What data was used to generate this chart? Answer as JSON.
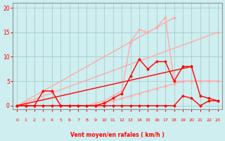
{
  "bg_color": "#ceeef0",
  "grid_color": "#aacccc",
  "line_color_dark": "#ff0000",
  "line_color_light": "#ff9999",
  "xlabel": "Vent moyen/en rafales ( km/h )",
  "ylabel_ticks": [
    0,
    5,
    10,
    15,
    20
  ],
  "x_ticks": [
    0,
    1,
    2,
    3,
    4,
    5,
    6,
    7,
    8,
    9,
    10,
    11,
    12,
    13,
    14,
    15,
    16,
    17,
    18,
    19,
    20,
    21,
    22,
    23
  ],
  "xlim": [
    -0.5,
    23.5
  ],
  "ylim": [
    -0.8,
    21
  ],
  "series": [
    {
      "x": [
        0,
        18
      ],
      "y": [
        0,
        18
      ],
      "color": "#ffaaaa",
      "lw": 1.0,
      "marker": "D",
      "ms": 1.5,
      "markevery": null
    },
    {
      "x": [
        0,
        23
      ],
      "y": [
        0,
        15
      ],
      "color": "#ffaaaa",
      "lw": 1.0,
      "marker": "D",
      "ms": 1.5,
      "markevery": null
    },
    {
      "x": [
        0,
        1,
        2,
        3,
        4,
        5,
        6,
        7,
        8,
        9,
        10,
        11,
        12,
        13,
        14,
        15,
        16,
        17,
        18,
        19,
        20,
        21,
        22,
        23
      ],
      "y": [
        0,
        0,
        0,
        3,
        3,
        0,
        0,
        0,
        0,
        0.5,
        1,
        2,
        3,
        13,
        15.5,
        15,
        16,
        18,
        5,
        5,
        5,
        5,
        5,
        5
      ],
      "color": "#ffaaaa",
      "lw": 1.0,
      "marker": "D",
      "ms": 1.5,
      "markevery": 1
    },
    {
      "x": [
        0,
        1,
        2,
        3,
        4,
        5,
        6,
        7,
        8,
        9,
        10,
        11,
        12,
        13,
        14,
        15,
        16,
        17,
        18,
        19,
        20,
        21,
        22,
        23
      ],
      "y": [
        0,
        0,
        0,
        0,
        0,
        0,
        0,
        0,
        0,
        0.2,
        0.5,
        1,
        1.5,
        2,
        2.5,
        3,
        3.5,
        4,
        4.5,
        5,
        5,
        5,
        5,
        5
      ],
      "color": "#ffaaaa",
      "lw": 1.0,
      "marker": "D",
      "ms": 1.5,
      "markevery": 1
    },
    {
      "x": [
        0,
        1,
        2,
        3,
        4,
        5,
        6,
        7,
        8,
        9,
        10,
        11,
        12,
        13,
        14,
        15,
        16,
        17,
        18,
        19,
        20,
        21,
        22,
        23
      ],
      "y": [
        0,
        0,
        0,
        3,
        3,
        0,
        0,
        0,
        0,
        0,
        0.5,
        1.5,
        2.5,
        6,
        9.5,
        7.5,
        9,
        9,
        5,
        8,
        8,
        2,
        1.5,
        1
      ],
      "color": "#ff0000",
      "lw": 1.0,
      "marker": "D",
      "ms": 1.5,
      "markevery": 1
    },
    {
      "x": [
        0,
        1,
        2,
        3,
        4,
        5,
        6,
        7,
        8,
        9,
        10,
        11,
        12,
        13,
        14,
        15,
        16,
        17,
        18,
        19,
        20,
        21,
        22,
        23
      ],
      "y": [
        0,
        0,
        0,
        0,
        0,
        0,
        0,
        0,
        0,
        0,
        0,
        0,
        0,
        0,
        0,
        0,
        0,
        0,
        0,
        2,
        1.5,
        0,
        1,
        1
      ],
      "color": "#ff0000",
      "lw": 1.0,
      "marker": "D",
      "ms": 1.5,
      "markevery": 1
    },
    {
      "x": [
        0,
        20
      ],
      "y": [
        0,
        8
      ],
      "color": "#ff0000",
      "lw": 1.0,
      "marker": "D",
      "ms": 1.5,
      "markevery": null
    }
  ],
  "wind_arrows_x": [
    0,
    1,
    2,
    3,
    4,
    5,
    6,
    7,
    8,
    9,
    10,
    11,
    12,
    13,
    14,
    15,
    16,
    17,
    18,
    19,
    20,
    21,
    22,
    23
  ],
  "wind_y": -0.55
}
